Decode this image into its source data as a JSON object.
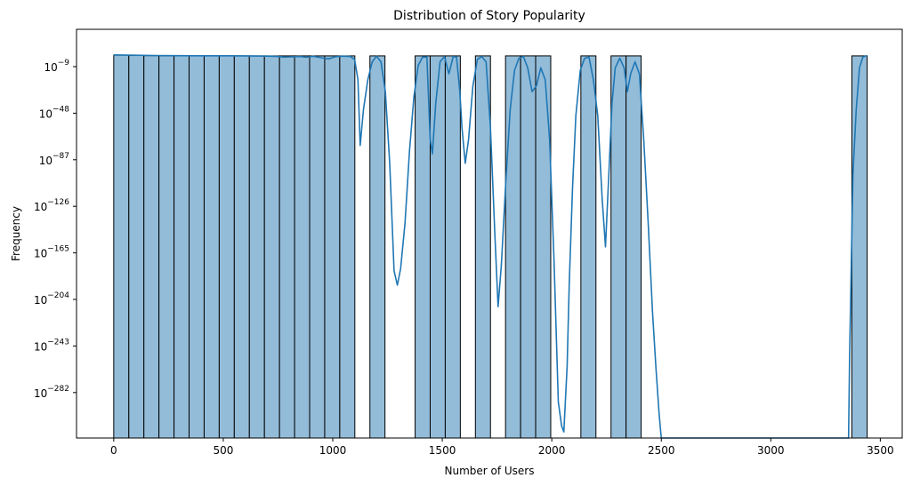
{
  "chart_data": {
    "type": "bar",
    "title": "Distribution of Story Popularity",
    "xlabel": "Number of Users",
    "ylabel": "Frequency",
    "y_scale": "log",
    "x_ticks": [
      0,
      500,
      1000,
      1500,
      2000,
      2500,
      3000,
      3500
    ],
    "y_tick_base": "10",
    "y_tick_exponents": [
      "−9",
      "−48",
      "−87",
      "−126",
      "−165",
      "−204",
      "−243",
      "−282"
    ],
    "xlim": [
      -170,
      3600
    ],
    "bin_width": 68.8,
    "bins": [
      {
        "x0": 0,
        "x1": 68.8,
        "log10_count": 0.6
      },
      {
        "x0": 68.8,
        "x1": 137.6,
        "log10_count": 0.3
      },
      {
        "x0": 137.6,
        "x1": 206.4,
        "log10_count": 0.2
      },
      {
        "x0": 206.4,
        "x1": 275.2,
        "log10_count": 0.1
      },
      {
        "x0": 275.2,
        "x1": 344,
        "log10_count": 0.1
      },
      {
        "x0": 344,
        "x1": 412.8,
        "log10_count": 0
      },
      {
        "x0": 412.8,
        "x1": 481.6,
        "log10_count": 0
      },
      {
        "x0": 481.6,
        "x1": 550.4,
        "log10_count": 0
      },
      {
        "x0": 550.4,
        "x1": 619.2,
        "log10_count": 0
      },
      {
        "x0": 619.2,
        "x1": 688,
        "log10_count": 0
      },
      {
        "x0": 688,
        "x1": 756.8,
        "log10_count": 0
      },
      {
        "x0": 756.8,
        "x1": 825.6,
        "log10_count": 0
      },
      {
        "x0": 825.6,
        "x1": 894.4,
        "log10_count": 0
      },
      {
        "x0": 894.4,
        "x1": 963.2,
        "log10_count": 0
      },
      {
        "x0": 963.2,
        "x1": 1032,
        "log10_count": 0
      },
      {
        "x0": 1032,
        "x1": 1100.8,
        "log10_count": 0
      },
      {
        "x0": 1169.6,
        "x1": 1238.4,
        "log10_count": 0
      },
      {
        "x0": 1376,
        "x1": 1444.8,
        "log10_count": 0
      },
      {
        "x0": 1444.8,
        "x1": 1513.6,
        "log10_count": 0
      },
      {
        "x0": 1513.6,
        "x1": 1582.4,
        "log10_count": 0
      },
      {
        "x0": 1651.2,
        "x1": 1720,
        "log10_count": 0
      },
      {
        "x0": 1788.8,
        "x1": 1857.6,
        "log10_count": 0
      },
      {
        "x0": 1857.6,
        "x1": 1926.4,
        "log10_count": 0
      },
      {
        "x0": 1926.4,
        "x1": 1995.2,
        "log10_count": 0
      },
      {
        "x0": 2132.8,
        "x1": 2201.6,
        "log10_count": 0
      },
      {
        "x0": 2270.4,
        "x1": 2339.2,
        "log10_count": 0
      },
      {
        "x0": 2339.2,
        "x1": 2408,
        "log10_count": 0
      },
      {
        "x0": 3370,
        "x1": 3440,
        "log10_count": 0
      }
    ],
    "kde_log10": [
      [
        0,
        0.8
      ],
      [
        100,
        0.5
      ],
      [
        200,
        0.3
      ],
      [
        300,
        0.15
      ],
      [
        400,
        0.1
      ],
      [
        500,
        0.05
      ],
      [
        600,
        0
      ],
      [
        700,
        -0.2
      ],
      [
        750,
        -0.5
      ],
      [
        780,
        -1
      ],
      [
        810,
        -0.8
      ],
      [
        850,
        -0.5
      ],
      [
        880,
        -1.2
      ],
      [
        910,
        -0.3
      ],
      [
        950,
        -1.6
      ],
      [
        980,
        -2.5
      ],
      [
        1010,
        -0.8
      ],
      [
        1040,
        -0.2
      ],
      [
        1080,
        -0.5
      ],
      [
        1100,
        -3
      ],
      [
        1115,
        -20
      ],
      [
        1125,
        -75
      ],
      [
        1140,
        -45
      ],
      [
        1160,
        -20
      ],
      [
        1180,
        -5
      ],
      [
        1200,
        -0.3
      ],
      [
        1220,
        -5
      ],
      [
        1240,
        -30
      ],
      [
        1260,
        -90
      ],
      [
        1280,
        -180
      ],
      [
        1295,
        -192
      ],
      [
        1310,
        -178
      ],
      [
        1330,
        -140
      ],
      [
        1350,
        -80
      ],
      [
        1370,
        -35
      ],
      [
        1390,
        -8
      ],
      [
        1410,
        -1
      ],
      [
        1430,
        -1
      ],
      [
        1445,
        -70
      ],
      [
        1455,
        -82
      ],
      [
        1470,
        -40
      ],
      [
        1490,
        -5
      ],
      [
        1510,
        -0.5
      ],
      [
        1530,
        -15
      ],
      [
        1550,
        -0.5
      ],
      [
        1565,
        -1
      ],
      [
        1580,
        -30
      ],
      [
        1590,
        -60
      ],
      [
        1605,
        -90
      ],
      [
        1620,
        -70
      ],
      [
        1640,
        -25
      ],
      [
        1660,
        -3
      ],
      [
        1680,
        -0.5
      ],
      [
        1700,
        -5
      ],
      [
        1720,
        -60
      ],
      [
        1740,
        -150
      ],
      [
        1755,
        -210
      ],
      [
        1770,
        -175
      ],
      [
        1790,
        -105
      ],
      [
        1810,
        -45
      ],
      [
        1830,
        -12
      ],
      [
        1850,
        -2
      ],
      [
        1870,
        -0.5
      ],
      [
        1890,
        -10
      ],
      [
        1910,
        -30
      ],
      [
        1930,
        -25
      ],
      [
        1950,
        -10
      ],
      [
        1970,
        -20
      ],
      [
        1990,
        -70
      ],
      [
        2010,
        -170
      ],
      [
        2030,
        -290
      ],
      [
        2045,
        -310
      ],
      [
        2055,
        -315
      ],
      [
        2070,
        -260
      ],
      [
        2080,
        -190
      ],
      [
        2095,
        -110
      ],
      [
        2110,
        -50
      ],
      [
        2130,
        -12
      ],
      [
        2150,
        -2
      ],
      [
        2170,
        -1
      ],
      [
        2190,
        -20
      ],
      [
        2210,
        -50
      ],
      [
        2230,
        -120
      ],
      [
        2245,
        -160
      ],
      [
        2260,
        -100
      ],
      [
        2275,
        -40
      ],
      [
        2290,
        -10
      ],
      [
        2310,
        -2
      ],
      [
        2330,
        -10
      ],
      [
        2345,
        -30
      ],
      [
        2360,
        -15
      ],
      [
        2380,
        -5
      ],
      [
        2400,
        -15
      ],
      [
        2420,
        -70
      ],
      [
        2440,
        -140
      ],
      [
        2460,
        -215
      ],
      [
        2475,
        -260
      ],
      [
        2490,
        -300
      ],
      [
        2500,
        -340
      ],
      [
        3355,
        -340
      ],
      [
        3360,
        -250
      ],
      [
        3375,
        -100
      ],
      [
        3390,
        -45
      ],
      [
        3405,
        -10
      ],
      [
        3420,
        -1
      ],
      [
        3440,
        0.3
      ]
    ],
    "colors": {
      "bar_fill": "#93bcd9",
      "bar_edge": "#000000",
      "kde_line": "#1f77b4"
    }
  }
}
